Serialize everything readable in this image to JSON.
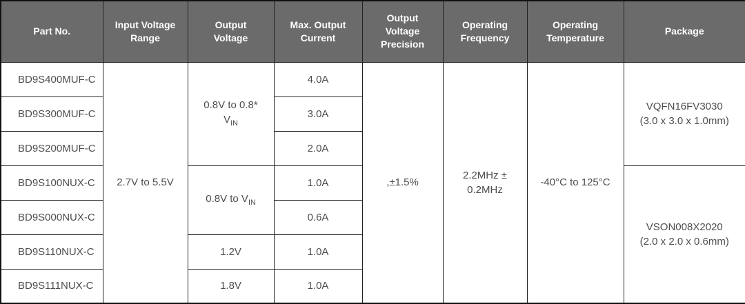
{
  "colors": {
    "header_bg": "#6b6b6b",
    "header_text": "#ffffff",
    "body_text": "#4d4d4d",
    "grid_border": "#222222",
    "outer_border": "#111111",
    "body_bg": "#ffffff"
  },
  "table": {
    "headers": {
      "part_no": "Part No.",
      "input_voltage_range": "Input Voltage\nRange",
      "output_voltage": "Output\nVoltage",
      "max_output_current": "Max. Output\nCurrent",
      "output_voltage_precision": "Output\nVoltage\nPrecision",
      "operating_frequency": "Operating\nFrequency",
      "operating_temperature": "Operating\nTemperature",
      "package": "Package"
    },
    "part_numbers": [
      "BD9S400MUF-C",
      "BD9S300MUF-C",
      "BD9S200MUF-C",
      "BD9S100NUX-C",
      "BD9S000NUX-C",
      "BD9S110NUX-C",
      "BD9S111NUX-C"
    ],
    "input_voltage_range": "2.7V to 5.5V",
    "output_voltages": [
      "0.8V to 0.8*\nV_{IN}",
      "0.8V to V_{IN}",
      "1.2V",
      "1.8V"
    ],
    "max_output_currents": [
      "4.0A",
      "3.0A",
      "2.0A",
      "1.0A",
      "0.6A",
      "1.0A",
      "1.0A"
    ],
    "output_voltage_precision": ",±1.5%",
    "operating_frequency": "2.2MHz ±\n0.2MHz",
    "operating_temperature": "-40°C to 125°C",
    "packages": [
      "VQFN16FV3030\n(3.0 x 3.0 x 1.0mm)",
      "VSON008X2020\n(2.0 x 2.0 x 0.6mm)"
    ]
  }
}
